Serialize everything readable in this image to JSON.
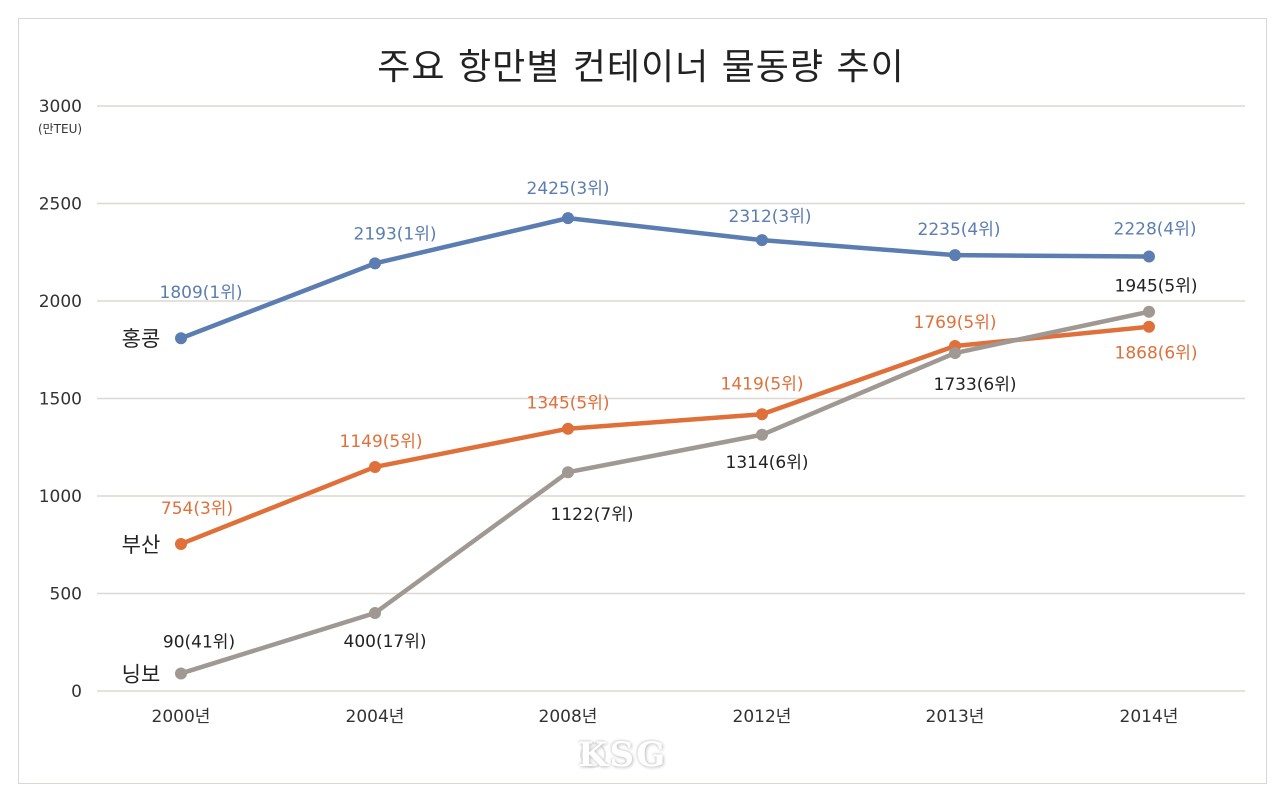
{
  "chart_data": {
    "type": "line",
    "title": "주요 항만별 컨테이너 물동량 추이",
    "xlabel": "",
    "ylabel": "(만TEU)",
    "ylim": [
      0,
      3000
    ],
    "yticks": [
      0,
      500,
      1000,
      1500,
      2000,
      2500,
      3000
    ],
    "ytick_labels": [
      "0",
      "500",
      "1000",
      "1500",
      "2000",
      "2500",
      "3000"
    ],
    "grid": true,
    "legend": "inline-left",
    "categories": [
      "2000년",
      "2004년",
      "2008년",
      "2012년",
      "2013년",
      "2014년"
    ],
    "series": [
      {
        "name": "홍콩",
        "color": "#5b7db1",
        "values": [
          1809,
          2193,
          2425,
          2312,
          2235,
          2228
        ],
        "labels": [
          "1809(1위)",
          "2193(1위)",
          "2425(3위)",
          "2312(3위)",
          "2235(4위)",
          "2228(4위)"
        ],
        "label_color": "#5b7db1",
        "label_pos": [
          "above",
          "above",
          "above",
          "above",
          "above",
          "above"
        ]
      },
      {
        "name": "부산",
        "color": "#e0703a",
        "values": [
          754,
          1149,
          1345,
          1419,
          1769,
          1868
        ],
        "labels": [
          "754(3위)",
          "1149(5위)",
          "1345(5위)",
          "1419(5위)",
          "1769(5위)",
          "1868(6위)"
        ],
        "label_color": "#e0703a",
        "label_pos": [
          "above",
          "above",
          "above",
          "above",
          "above",
          "below"
        ]
      },
      {
        "name": "닝보",
        "color": "#a09892",
        "values": [
          90,
          400,
          1122,
          1314,
          1733,
          1945
        ],
        "labels": [
          "90(41위)",
          "400(17위)",
          "1122(7위)",
          "1314(6위)",
          "1733(6위)",
          "1945(5위)"
        ],
        "label_color": "#222222",
        "label_pos": [
          "above",
          "below",
          "below",
          "below",
          "below",
          "above"
        ]
      }
    ],
    "watermark": "KSG"
  }
}
